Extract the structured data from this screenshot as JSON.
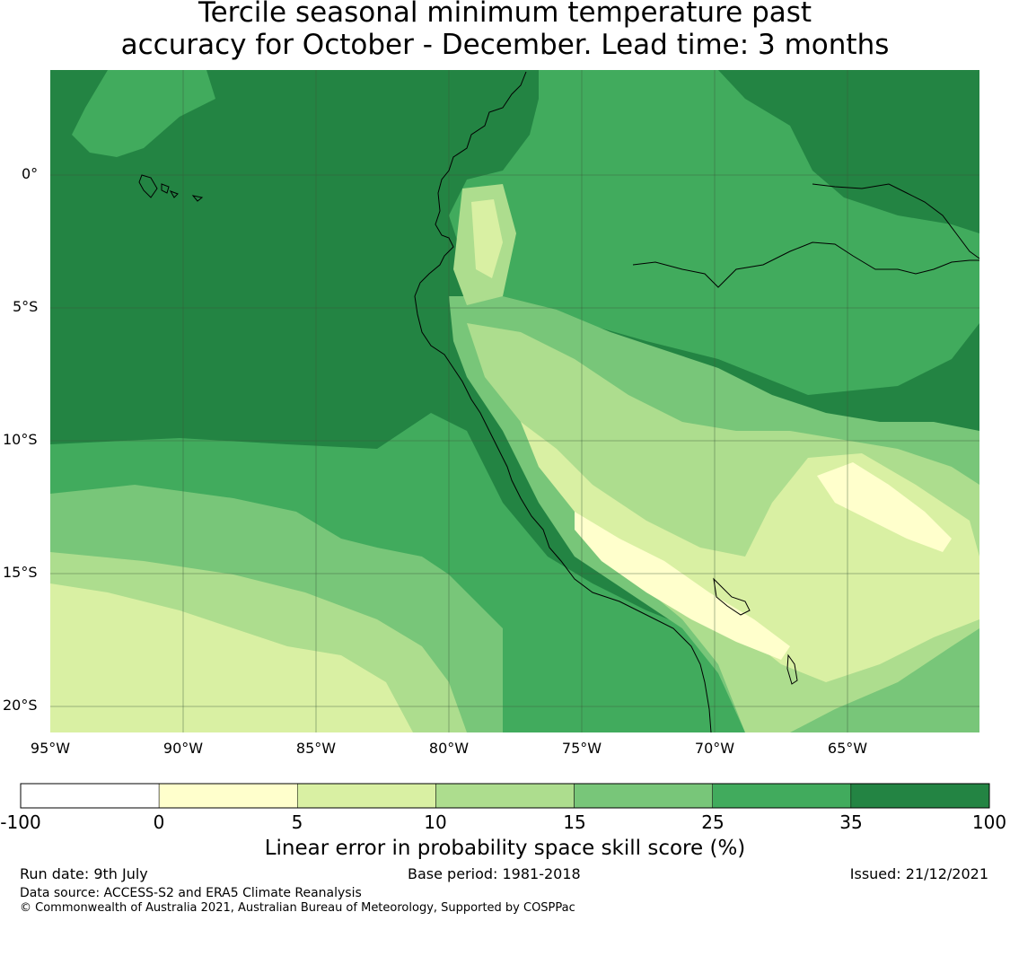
{
  "title": {
    "line1": "Tercile seasonal minimum temperature past",
    "line2": "accuracy for October - December. Lead time: 3 months"
  },
  "map": {
    "lat_labels": [
      "0°",
      "5°S",
      "10°S",
      "15°S",
      "20°S"
    ],
    "lon_labels": [
      "95°W",
      "90°W",
      "85°W",
      "80°W",
      "75°W",
      "70°W",
      "65°W"
    ]
  },
  "colorbar": {
    "ticks": [
      "-100",
      "0",
      "5",
      "10",
      "15",
      "25",
      "35",
      "100"
    ],
    "colors": [
      "#ffffff",
      "#ffffcc",
      "#d9f0a3",
      "#addd8e",
      "#78c679",
      "#41ab5d",
      "#238443"
    ],
    "label": "Linear error in probability space skill score (%)"
  },
  "footer": {
    "run_date": "Run date: 9th July",
    "base_period": "Base period: 1981-2018",
    "issued": "Issued: 21/12/2021",
    "data_source": "Data source: ACCESS-S2 and ERA5 Climate Reanalysis",
    "copyright": "© Commonwealth of Australia 2021, Australian Bureau of Meteorology, Supported by COSPPac"
  }
}
